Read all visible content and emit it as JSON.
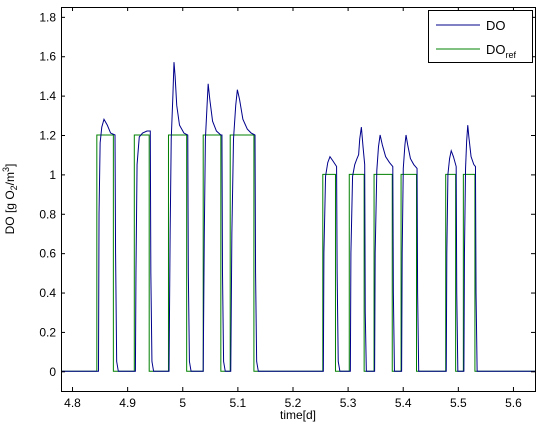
{
  "chart_data": {
    "type": "line",
    "title": "",
    "xlabel": "time[d]",
    "ylabel_parts": {
      "pre": "DO [g O",
      "sub": "2",
      "mid": "/m",
      "sup": "3",
      "post": "]"
    },
    "xlim": [
      4.78,
      5.64
    ],
    "ylim": [
      -0.1,
      1.85
    ],
    "xticks": [
      4.8,
      4.9,
      5,
      5.1,
      5.2,
      5.3,
      5.4,
      5.5,
      5.6
    ],
    "xtick_labels": [
      "4.8",
      "4.9",
      "5",
      "5.1",
      "5.2",
      "5.3",
      "5.4",
      "5.5",
      "5.6"
    ],
    "yticks": [
      0,
      0.2,
      0.4,
      0.6,
      0.8,
      1,
      1.2,
      1.4,
      1.6,
      1.8
    ],
    "ytick_labels": [
      "0",
      "0.2",
      "0.4",
      "0.6",
      "0.8",
      "1",
      "1.2",
      "1.4",
      "1.6",
      "1.8"
    ],
    "grid": false,
    "legend_position": "top-right",
    "series": [
      {
        "name": "DO",
        "legend_label": {
          "main": "DO",
          "sub": ""
        },
        "color": "#00008b",
        "points": [
          [
            4.78,
            0
          ],
          [
            4.848,
            0
          ],
          [
            4.849,
            0.8
          ],
          [
            4.851,
            1.16
          ],
          [
            4.854,
            1.24
          ],
          [
            4.858,
            1.28
          ],
          [
            4.864,
            1.25
          ],
          [
            4.87,
            1.21
          ],
          [
            4.878,
            1.2
          ],
          [
            4.879,
            0.6
          ],
          [
            4.881,
            0.05
          ],
          [
            4.884,
            0
          ],
          [
            4.915,
            0
          ],
          [
            4.916,
            0.5
          ],
          [
            4.918,
            1.05
          ],
          [
            4.922,
            1.19
          ],
          [
            4.928,
            1.21
          ],
          [
            4.936,
            1.22
          ],
          [
            4.942,
            1.22
          ],
          [
            4.943,
            0.5
          ],
          [
            4.945,
            0.05
          ],
          [
            4.948,
            0
          ],
          [
            4.976,
            0
          ],
          [
            4.978,
            0.7
          ],
          [
            4.98,
            1.18
          ],
          [
            4.983,
            1.4
          ],
          [
            4.985,
            1.57
          ],
          [
            4.987,
            1.5
          ],
          [
            4.99,
            1.35
          ],
          [
            4.995,
            1.25
          ],
          [
            5.003,
            1.21
          ],
          [
            5.01,
            1.2
          ],
          [
            5.011,
            0.5
          ],
          [
            5.013,
            0.05
          ],
          [
            5.016,
            0
          ],
          [
            5.038,
            0
          ],
          [
            5.04,
            0.7
          ],
          [
            5.042,
            1.18
          ],
          [
            5.045,
            1.35
          ],
          [
            5.047,
            1.46
          ],
          [
            5.05,
            1.38
          ],
          [
            5.055,
            1.27
          ],
          [
            5.062,
            1.22
          ],
          [
            5.07,
            1.2
          ],
          [
            5.072,
            1.2
          ],
          [
            5.073,
            0.5
          ],
          [
            5.075,
            0.05
          ],
          [
            5.078,
            0
          ],
          [
            5.088,
            0
          ],
          [
            5.09,
            0.7
          ],
          [
            5.093,
            1.18
          ],
          [
            5.097,
            1.35
          ],
          [
            5.1,
            1.43
          ],
          [
            5.104,
            1.38
          ],
          [
            5.11,
            1.28
          ],
          [
            5.118,
            1.23
          ],
          [
            5.125,
            1.21
          ],
          [
            5.132,
            1.2
          ],
          [
            5.133,
            0.5
          ],
          [
            5.135,
            0.05
          ],
          [
            5.138,
            0
          ],
          [
            5.256,
            0
          ],
          [
            5.257,
            0.6
          ],
          [
            5.26,
            0.99
          ],
          [
            5.264,
            1.06
          ],
          [
            5.268,
            1.09
          ],
          [
            5.273,
            1.07
          ],
          [
            5.28,
            1.04
          ],
          [
            5.281,
            0.5
          ],
          [
            5.283,
            0.05
          ],
          [
            5.286,
            0
          ],
          [
            5.305,
            0
          ],
          [
            5.306,
            0.6
          ],
          [
            5.309,
            0.99
          ],
          [
            5.313,
            1.05
          ],
          [
            5.317,
            1.08
          ],
          [
            5.32,
            1.1
          ],
          [
            5.322,
            1.18
          ],
          [
            5.325,
            1.24
          ],
          [
            5.328,
            1.14
          ],
          [
            5.331,
            1.05
          ],
          [
            5.332,
            0.3
          ],
          [
            5.334,
            0
          ],
          [
            5.349,
            0
          ],
          [
            5.35,
            0.6
          ],
          [
            5.353,
            1.02
          ],
          [
            5.356,
            1.14
          ],
          [
            5.359,
            1.2
          ],
          [
            5.363,
            1.15
          ],
          [
            5.369,
            1.09
          ],
          [
            5.376,
            1.06
          ],
          [
            5.382,
            1.04
          ],
          [
            5.383,
            0.4
          ],
          [
            5.385,
            0
          ],
          [
            5.398,
            0
          ],
          [
            5.399,
            0.6
          ],
          [
            5.401,
            1.03
          ],
          [
            5.404,
            1.15
          ],
          [
            5.406,
            1.2
          ],
          [
            5.409,
            1.15
          ],
          [
            5.414,
            1.08
          ],
          [
            5.42,
            1.05
          ],
          [
            5.426,
            1.03
          ],
          [
            5.427,
            0.4
          ],
          [
            5.429,
            0
          ],
          [
            5.479,
            0
          ],
          [
            5.48,
            0.6
          ],
          [
            5.482,
            1.0
          ],
          [
            5.485,
            1.08
          ],
          [
            5.488,
            1.12
          ],
          [
            5.492,
            1.09
          ],
          [
            5.497,
            1.04
          ],
          [
            5.498,
            0.4
          ],
          [
            5.5,
            0
          ],
          [
            5.511,
            0
          ],
          [
            5.512,
            0.6
          ],
          [
            5.514,
            1.03
          ],
          [
            5.516,
            1.17
          ],
          [
            5.518,
            1.25
          ],
          [
            5.52,
            1.19
          ],
          [
            5.524,
            1.09
          ],
          [
            5.529,
            1.05
          ],
          [
            5.532,
            1.04
          ],
          [
            5.533,
            0.4
          ],
          [
            5.535,
            0
          ],
          [
            5.64,
            0
          ]
        ]
      },
      {
        "name": "DO_ref",
        "legend_label": {
          "main": "DO",
          "sub": "ref"
        },
        "color": "#008000",
        "points": [
          [
            4.78,
            0
          ],
          [
            4.845,
            0
          ],
          [
            4.845,
            1.2
          ],
          [
            4.875,
            1.2
          ],
          [
            4.875,
            0
          ],
          [
            4.913,
            0
          ],
          [
            4.913,
            1.2
          ],
          [
            4.94,
            1.2
          ],
          [
            4.94,
            0
          ],
          [
            4.975,
            0
          ],
          [
            4.975,
            1.2
          ],
          [
            5.008,
            1.2
          ],
          [
            5.008,
            0
          ],
          [
            5.038,
            0
          ],
          [
            5.038,
            1.2
          ],
          [
            5.07,
            1.2
          ],
          [
            5.07,
            0
          ],
          [
            5.087,
            0
          ],
          [
            5.087,
            1.2
          ],
          [
            5.13,
            1.2
          ],
          [
            5.13,
            0
          ],
          [
            5.255,
            0
          ],
          [
            5.255,
            1.0
          ],
          [
            5.278,
            1.0
          ],
          [
            5.278,
            0
          ],
          [
            5.303,
            0
          ],
          [
            5.303,
            1.0
          ],
          [
            5.33,
            1.0
          ],
          [
            5.33,
            0
          ],
          [
            5.348,
            0
          ],
          [
            5.348,
            1.0
          ],
          [
            5.381,
            1.0
          ],
          [
            5.381,
            0
          ],
          [
            5.397,
            0
          ],
          [
            5.397,
            1.0
          ],
          [
            5.425,
            1.0
          ],
          [
            5.425,
            0
          ],
          [
            5.478,
            0
          ],
          [
            5.478,
            1.0
          ],
          [
            5.496,
            1.0
          ],
          [
            5.496,
            0
          ],
          [
            5.51,
            0
          ],
          [
            5.51,
            1.0
          ],
          [
            5.531,
            1.0
          ],
          [
            5.531,
            0
          ],
          [
            5.64,
            0
          ]
        ]
      }
    ]
  }
}
